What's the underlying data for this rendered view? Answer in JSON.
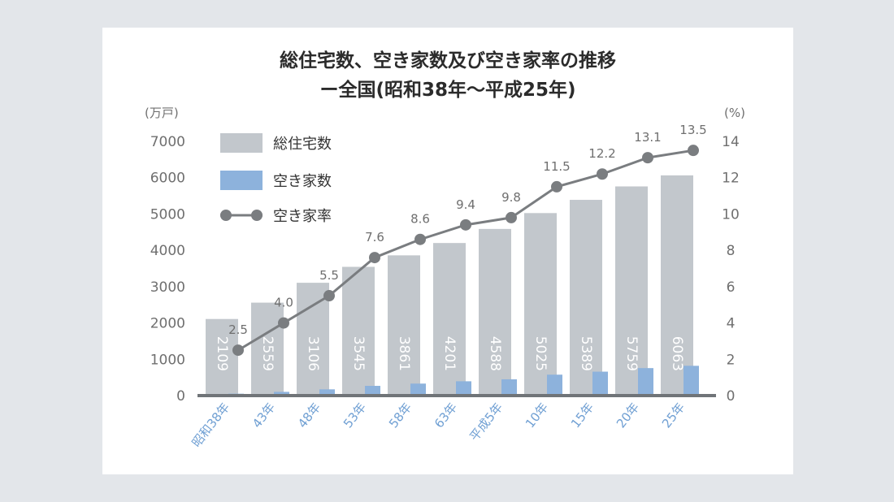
{
  "chart_data": {
    "type": "bar",
    "title_line1": "総住宅数、空き家数及び空き家率の推移",
    "title_line2": "ー全国(昭和38年〜平成25年)",
    "y_left_unit": "(万戸)",
    "y_right_unit": "(%)",
    "y_left_ticks": [
      "0",
      "1000",
      "2000",
      "3000",
      "4000",
      "5000",
      "6000",
      "7000"
    ],
    "y_right_ticks": [
      "0",
      "2",
      "4",
      "6",
      "8",
      "10",
      "12",
      "14"
    ],
    "ylim_left": [
      0,
      7000
    ],
    "ylim_right": [
      0,
      14
    ],
    "categories": [
      "昭和38年",
      "43年",
      "48年",
      "53年",
      "58年",
      "63年",
      "平成5年",
      "10年",
      "15年",
      "20年",
      "25年"
    ],
    "series": [
      {
        "name": "総住宅数",
        "kind": "bar",
        "axis": "left",
        "color": "#c2c7cc",
        "values": [
          2109,
          2559,
          3106,
          3545,
          3861,
          4201,
          4588,
          5025,
          5389,
          5759,
          6063
        ],
        "labels": [
          "2109",
          "2559",
          "3106",
          "3545",
          "3861",
          "4201",
          "4588",
          "5025",
          "5389",
          "5759",
          "6063"
        ]
      },
      {
        "name": "空き家数",
        "kind": "bar",
        "axis": "left",
        "color": "#8db2dc",
        "values": [
          52,
          103,
          172,
          268,
          330,
          394,
          448,
          576,
          659,
          757,
          820
        ]
      },
      {
        "name": "空き家率",
        "kind": "line",
        "axis": "right",
        "color": "#7a7d80",
        "values": [
          2.5,
          4.0,
          5.5,
          7.6,
          8.6,
          9.4,
          9.8,
          11.5,
          12.2,
          13.1,
          13.5
        ],
        "labels": [
          "2.5",
          "4.0",
          "5.5",
          "7.6",
          "8.6",
          "9.4",
          "9.8",
          "11.5",
          "12.2",
          "13.1",
          "13.5"
        ]
      }
    ],
    "legend": [
      {
        "label": "総住宅数",
        "symbol": "bar",
        "color": "#c2c7cc"
      },
      {
        "label": "空き家数",
        "symbol": "bar",
        "color": "#8db2dc"
      },
      {
        "label": "空き家率",
        "symbol": "line",
        "color": "#7a7d80"
      }
    ],
    "legend_position": "top-left",
    "grid": false
  }
}
